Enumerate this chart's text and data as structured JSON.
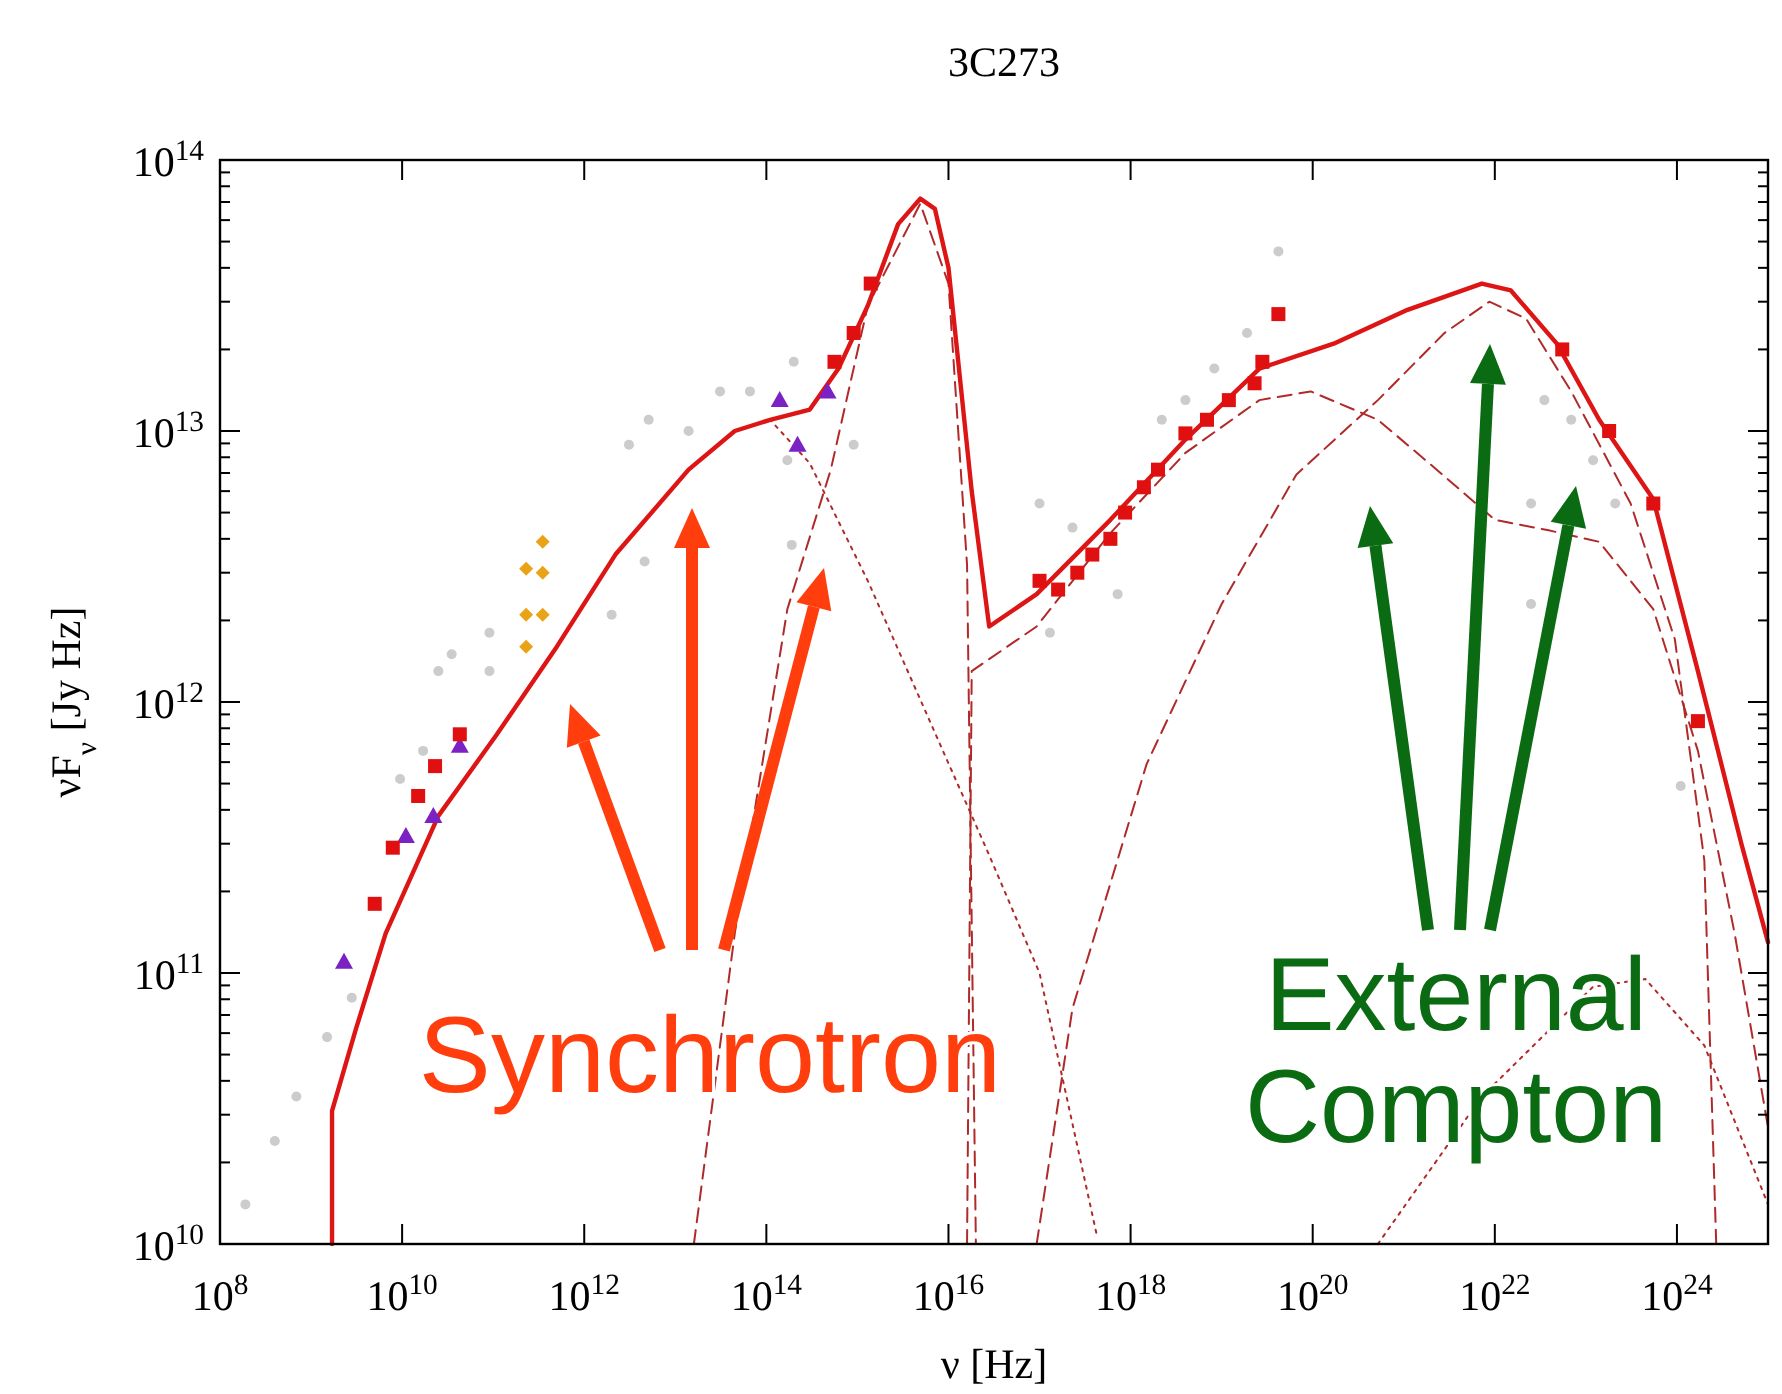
{
  "chart_data": {
    "type": "line",
    "title": "3C273",
    "xlabel": "ν [Hz]",
    "ylabel": "νF$_{ν}$ [Jy Hz]",
    "log": "xy",
    "grid": false,
    "xlim": [
      100000000.0,
      1e+25
    ],
    "ylim": [
      10000000000.0,
      100000000000000.0
    ],
    "xticks": [
      {
        "value": 100000000.0,
        "label": "10$^{8}$"
      },
      {
        "value": 10000000000.0,
        "label": "10$^{10}$"
      },
      {
        "value": 1000000000000.0,
        "label": "10$^{12}$"
      },
      {
        "value": 100000000000000.0,
        "label": "10$^{14}$"
      },
      {
        "value": 1e+16,
        "label": "10$^{16}$"
      },
      {
        "value": 1e+18,
        "label": "10$^{18}$"
      },
      {
        "value": 1e+20,
        "label": "10$^{20}$"
      },
      {
        "value": 1e+22,
        "label": "10$^{22}$"
      },
      {
        "value": 1e+24,
        "label": "10$^{24}$"
      }
    ],
    "yticks": [
      {
        "value": 10000000000.0,
        "label": "10$^{10}$"
      },
      {
        "value": 100000000000.0,
        "label": "10$^{11}$"
      },
      {
        "value": 1000000000000.0,
        "label": "10$^{12}$"
      },
      {
        "value": 10000000000000.0,
        "label": "10$^{13}$"
      },
      {
        "value": 100000000000000.0,
        "label": "10$^{14}$"
      }
    ],
    "annotations": [
      "Synchrotron",
      "External Compton"
    ],
    "series": [
      {
        "type": "scatter",
        "marker": "circle",
        "color": "#cccccc",
        "x": [
          190000000.0,
          400000000.0,
          690000000.0,
          1500000000.0,
          2800000000.0,
          9500000000.0,
          17000000000.0,
          25000000000.0,
          35000000000.0,
          91000000000.0,
          91000000000.0,
          2000000000000.0,
          4600000000000.0,
          3100000000000.0,
          5100000000000.0,
          14000000000000.0,
          31000000000000.0,
          66000000000000.0,
          170000000000000.0,
          200000000000000.0,
          190000000000000.0,
          910000000000000.0,
          1e+17,
          1.3e+17,
          2.3e+17,
          7.2e+17,
          2.2e+18,
          4e+18,
          8.3e+18,
          1.9e+19,
          4.2e+19,
          3.5e+22,
          2.5e+22,
          6.9e+22,
          1.2e+23,
          2.1e+23,
          2.5e+22,
          1.1e+24
        ],
        "values": [
          14000000000.0,
          24000000000.0,
          35000000000.0,
          58000000000.0,
          81000000000.0,
          520000000000.0,
          660000000000.0,
          1300000000000.0,
          1500000000000.0,
          1300000000000.0,
          1800000000000.0,
          2100000000000.0,
          3300000000000.0,
          8900000000000.0,
          11000000000000.0,
          10000000000000.0,
          14000000000000.0,
          14000000000000.0,
          7800000000000.0,
          18000000000000.0,
          3800000000000.0,
          8900000000000.0,
          5400000000000.0,
          1800000000000.0,
          4400000000000.0,
          2500000000000.0,
          11000000000000.0,
          13000000000000.0,
          17000000000000.0,
          23000000000000.0,
          46000000000000.0,
          13000000000000.0,
          5400000000000.0,
          11000000000000.0,
          7800000000000.0,
          5400000000000.0,
          2300000000000.0,
          490000000000.0
        ]
      },
      {
        "line_style": "dotted",
        "color": "#b02a2a",
        "x": [
          45000000000000.0,
          110000000000000.0,
          300000000000000.0,
          1300000000000000.0,
          8700000000000000.0,
          2.7e+16,
          1e+17,
          4.2e+17
        ],
        "values": [
          10000000000000.0,
          11000000000000.0,
          7600000000000.0,
          2800000000000.0,
          660000000000.0,
          280000000000.0,
          100000000000.0,
          11000000000.0
        ]
      },
      {
        "line_style": "dashed",
        "color": "#b02a2a",
        "x": [
          16000000000000.0,
          45000000000000.0,
          170000000000000.0,
          510000000000000.0,
          1300000000000000.0,
          4900000000000000.0,
          1e+16,
          1.6e+16,
          2e+16
        ],
        "values": [
          10000000000.0,
          140000000000.0,
          2200000000000.0,
          7200000000000.0,
          29000000000000.0,
          69000000000000.0,
          35000000000000.0,
          3200000000000.0,
          10000000000.0
        ]
      },
      {
        "line_style": "dashed",
        "color": "#b02a2a",
        "x": [
          1.6e+16,
          1.8e+16,
          9.3e+16,
          6e+17,
          4e+18,
          2.6e+19,
          9.5e+19,
          5.2e+20,
          2.3e+21,
          1e+22,
          3.9e+22,
          1.4e+23,
          5.5e+23,
          1.7e+24,
          4.3e+24,
          1e+25
        ],
        "values": [
          10000000000.0,
          1300000000000.0,
          1900000000000.0,
          4200000000000.0,
          8300000000000.0,
          13000000000000.0,
          14000000000000.0,
          11000000000000.0,
          7200000000000.0,
          4700000000000.0,
          4300000000000.0,
          3900000000000.0,
          2200000000000.0,
          660000000000.0,
          140000000000.0,
          27000000000.0
        ]
      },
      {
        "line_style": "dashed",
        "color": "#b02a2a",
        "x": [
          9.3e+16,
          2.3e+17,
          1.5e+18,
          1e+19,
          6.6e+19,
          5.2e+20,
          2.8e+21,
          8.7e+21,
          2.2e+22,
          6.9e+22,
          3.1e+23,
          9.5e+23,
          2e+24,
          2.7e+24
        ],
        "values": [
          10000000000.0,
          74000000000.0,
          590000000000.0,
          2300000000000.0,
          6900000000000.0,
          13000000000000.0,
          23000000000000.0,
          30000000000000.0,
          26000000000000.0,
          14000000000000.0,
          5400000000000.0,
          1700000000000.0,
          260000000000.0,
          10000000000.0
        ]
      },
      {
        "line_style": "dotted",
        "color": "#b02a2a",
        "x": [
          5.2e+20,
          7.2e+21,
          1.2e+23,
          4.5e+23,
          2e+24,
          1e+25
        ],
        "values": [
          10000000000.0,
          35000000000.0,
          89000000000.0,
          95000000000.0,
          54000000000.0,
          14000000000.0
        ]
      },
      {
        "line_style": "solid",
        "color": "#dd1515",
        "x": [
          1700000000.0,
          1700000000.0,
          3100000000.0,
          6600000000.0,
          25000000000.0,
          110000000000.0,
          500000000000.0,
          2200000000000.0,
          14000000000000.0,
          45000000000000.0,
          110000000000000.0,
          300000000000000.0,
          620000000000000.0,
          1300000000000000.0,
          2800000000000000.0,
          4900000000000000.0,
          7100000000000000.0,
          1e+16,
          1.8e+16,
          2.8e+16,
          9.3e+16,
          6e+17,
          4e+18,
          2.6e+19,
          1.7e+20,
          1.1e+21,
          7.2e+21,
          1.5e+22,
          4.8e+22,
          1.4e+23,
          5.5e+23,
          1.7e+24,
          5.1e+24,
          1e+25
        ],
        "values": [
          10000000000.0,
          31000000000.0,
          62000000000.0,
          140000000000.0,
          380000000000.0,
          760000000000.0,
          1600000000000.0,
          3500000000000.0,
          7200000000000.0,
          10000000000000.0,
          11000000000000.0,
          12000000000000.0,
          17000000000000.0,
          29000000000000.0,
          58000000000000.0,
          72000000000000.0,
          66000000000000.0,
          40000000000000.0,
          6000000000000.0,
          1900000000000.0,
          2500000000000.0,
          4700000000000.0,
          9300000000000.0,
          17000000000000.0,
          21000000000000.0,
          28000000000000.0,
          35000000000000.0,
          33000000000000.0,
          21000000000000.0,
          11000000000000.0,
          5600000000000.0,
          1300000000000.0,
          300000000000.0,
          130000000000.0
        ]
      },
      {
        "type": "scatter",
        "marker": "diamond",
        "color": "#e8a317",
        "x": [
          230000000000.0,
          230000000000.0,
          230000000000.0,
          350000000000.0,
          350000000000.0,
          350000000000.0
        ],
        "values": [
          3100000000000.0,
          2100000000000.0,
          1600000000000.0,
          3000000000000.0,
          2100000000000.0,
          3900000000000.0
        ]
      },
      {
        "type": "scatter",
        "marker": "triangle",
        "color": "#7a22c4",
        "x": [
          2300000000.0,
          11000000000.0,
          22000000000.0,
          43000000000.0,
          140000000000000.0,
          220000000000000.0,
          470000000000000.0
        ],
        "values": [
          110000000000.0,
          320000000000.0,
          380000000000.0,
          690000000000.0,
          13000000000000.0,
          8900000000000.0,
          14000000000000.0
        ]
      },
      {
        "type": "scatter",
        "marker": "square",
        "color": "#e01010",
        "x": [
          5000000000.0,
          7900000000.0,
          15000000000.0,
          23000000000.0,
          43000000000.0,
          560000000000000.0,
          910000000000000.0,
          1400000000000000.0,
          1e+17,
          1.6e+17,
          2.6e+17,
          3.8e+17,
          6e+17,
          8.7e+17,
          1.4e+18,
          2e+18,
          4e+18,
          6.9e+18,
          1.2e+19,
          2.3e+19,
          2.8e+19,
          4.2e+19,
          5.5e+22,
          1.8e+23,
          5.5e+23,
          1.7e+24
        ],
        "values": [
          180000000000.0,
          290000000000.0,
          450000000000.0,
          580000000000.0,
          760000000000.0,
          18000000000000.0,
          23000000000000.0,
          35000000000000.0,
          2800000000000.0,
          2600000000000.0,
          3000000000000.0,
          3500000000000.0,
          4000000000000.0,
          5000000000000.0,
          6200000000000.0,
          7200000000000.0,
          9800000000000.0,
          11000000000000.0,
          13000000000000.0,
          15000000000000.0,
          18000000000000.0,
          27000000000000.0,
          20000000000000.0,
          10000000000000.0,
          5400000000000.0,
          850000000000.0
        ]
      }
    ]
  }
}
